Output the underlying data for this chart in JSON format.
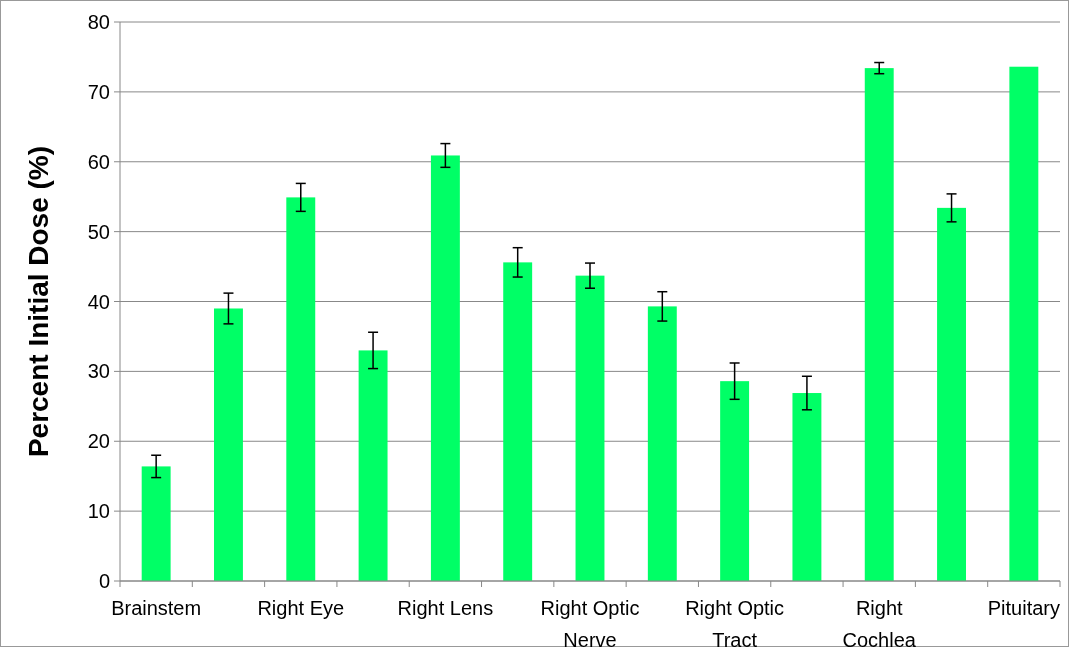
{
  "chart_data": {
    "type": "bar",
    "ylabel": "Percent Initial Dose (%)",
    "categories": [
      "Brainstem",
      null,
      "Right Eye",
      null,
      "Right Lens",
      null,
      "Right Optic Nerve",
      null,
      "Right Optic Tract",
      null,
      "Right Cochlea",
      null,
      "Pituitary"
    ],
    "values": [
      16.4,
      39,
      54.9,
      33,
      60.9,
      45.6,
      43.7,
      39.3,
      28.6,
      26.9,
      73.4,
      53.4,
      73.6
    ],
    "errors": [
      1.6,
      2.2,
      2,
      2.6,
      1.7,
      2.1,
      1.8,
      2.1,
      2.6,
      2.4,
      0.8,
      2,
      null
    ],
    "color": "#00ff66",
    "ylim": [
      0,
      80
    ],
    "yticks": [
      0,
      10,
      20,
      30,
      40,
      50,
      60,
      70,
      80
    ],
    "grid": "y"
  }
}
